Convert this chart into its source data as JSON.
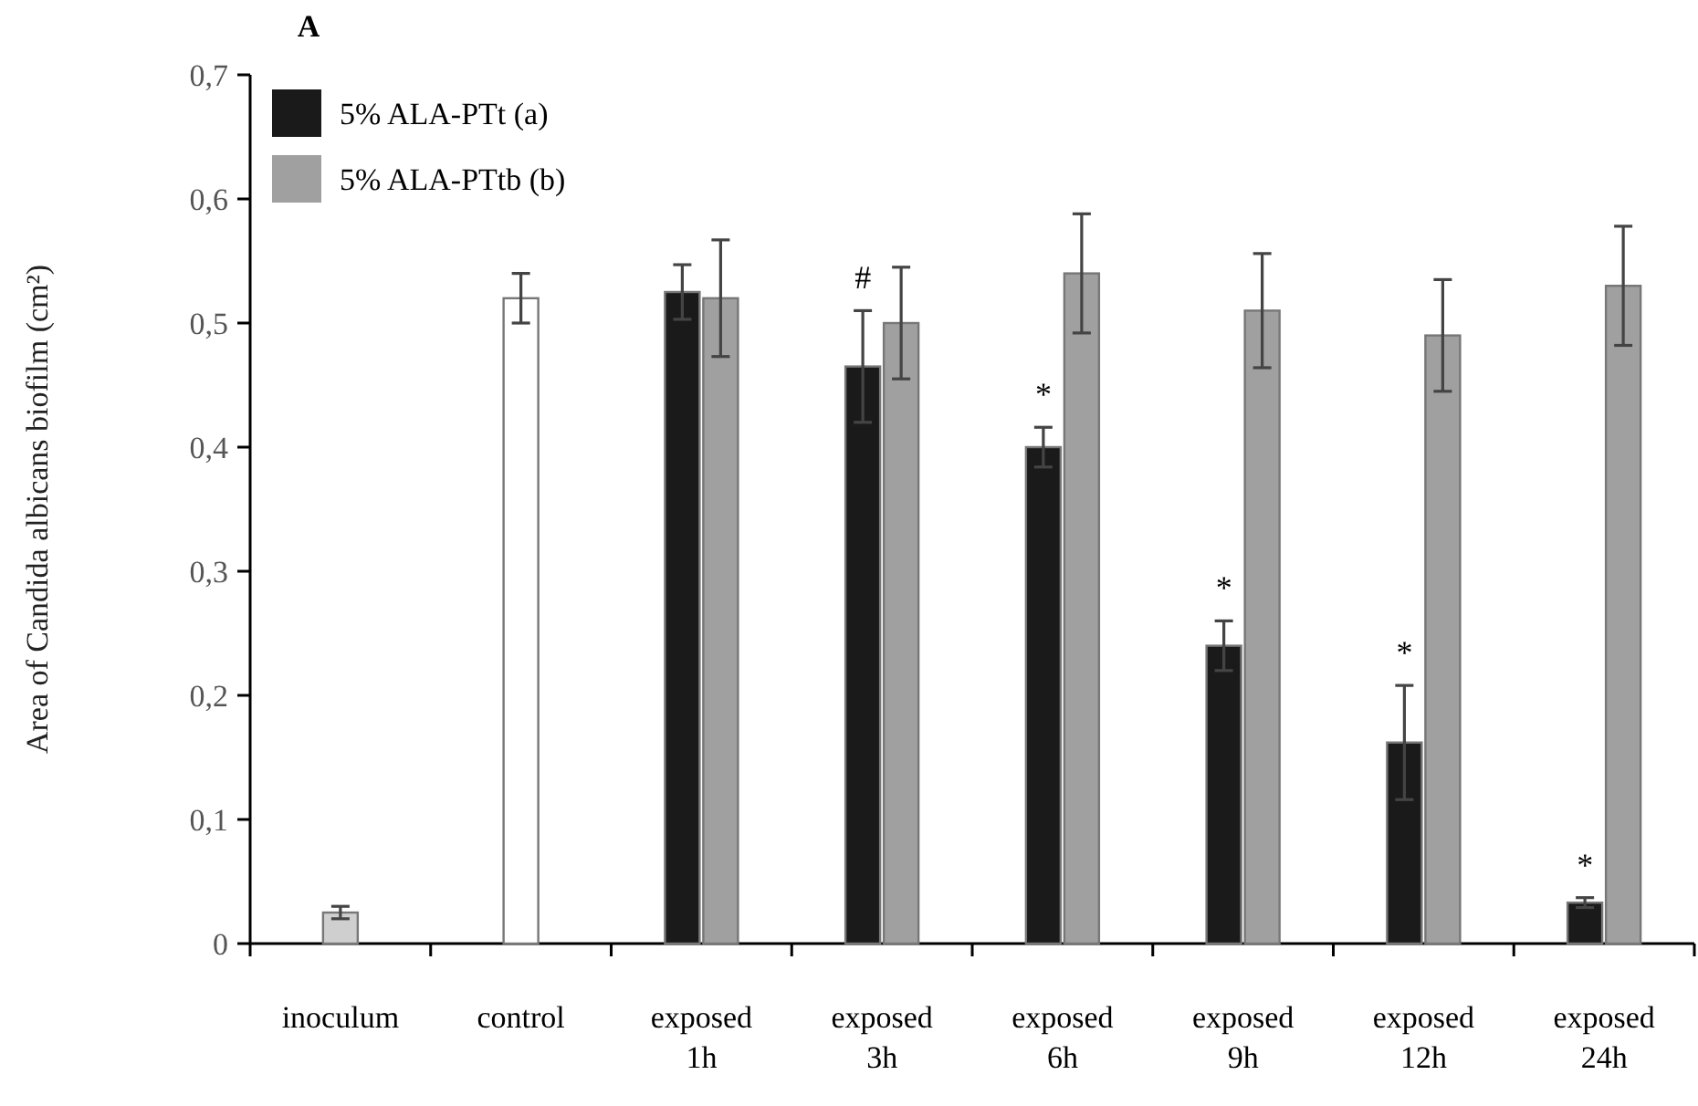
{
  "chart_data": {
    "type": "bar",
    "title": "A",
    "ylabel": "Area of Candida albicans biofilm (cm²)",
    "categories": [
      "inoculum",
      "control",
      "exposed 1h",
      "exposed 3h",
      "exposed 6h",
      "exposed 9h",
      "exposed 12h",
      "exposed 24h"
    ],
    "series": [
      {
        "name": "5% ALA-PTt (a)",
        "color": "#1a1a1a",
        "values": [
          null,
          null,
          0.525,
          0.465,
          0.4,
          0.24,
          0.162,
          0.033
        ],
        "errors": [
          null,
          null,
          0.022,
          0.045,
          0.016,
          0.02,
          0.046,
          0.004
        ]
      },
      {
        "name": "5% ALA-PTtb (b)",
        "color": "#a0a0a0",
        "values": [
          null,
          null,
          0.52,
          0.5,
          0.54,
          0.51,
          0.49,
          0.53
        ],
        "errors": [
          null,
          null,
          0.047,
          0.045,
          0.048,
          0.046,
          0.045,
          0.048
        ]
      },
      {
        "colors": [
          "#cfcfcf",
          "#ffffff",
          null,
          null,
          null,
          null,
          null,
          null
        ],
        "values": [
          0.025,
          0.52,
          null,
          null,
          null,
          null,
          null,
          null
        ],
        "errors": [
          0.005,
          0.02,
          null,
          null,
          null,
          null,
          null,
          null
        ]
      }
    ],
    "ylim": [
      0,
      0.7
    ],
    "yticks": [
      0,
      {
        "value": 0.1,
        "label": "0,1"
      },
      {
        "value": 0.2,
        "label": "0,2"
      },
      {
        "value": 0.3,
        "label": "0,3"
      },
      {
        "value": 0.4,
        "label": "0,4"
      },
      {
        "value": 0.5,
        "label": "0,5"
      },
      {
        "value": 0.6,
        "label": "0,6"
      },
      {
        "value": 0.7,
        "label": "0,7"
      }
    ],
    "legend": "top left",
    "annotations": [
      {
        "text": "#",
        "x": "exposed 3h",
        "y": 0.465
      },
      {
        "text": "*",
        "x": "exposed 6h",
        "y": 0.4
      },
      {
        "text": "*",
        "x": "exposed 9h",
        "y": 0.24
      },
      {
        "text": "*",
        "x": "exposed 12h",
        "y": 0.162
      },
      {
        "text": "*",
        "x": "exposed 24h",
        "y": 0.033
      }
    ]
  }
}
